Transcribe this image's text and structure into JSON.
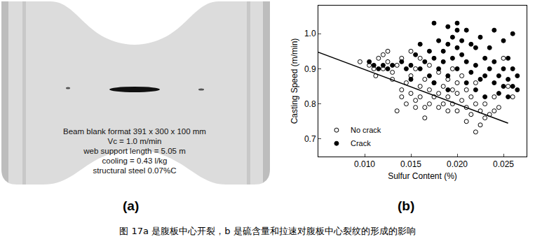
{
  "panel_a": {
    "label": "(a)",
    "lines": [
      "Beam blank format 391 x 300 x 100 mm",
      "Vc = 1.0 m/min",
      "web support length = 5.05 m",
      "cooling = 0.43 l/kg",
      "structural steel 0.07%C"
    ]
  },
  "panel_b_label": "(b)",
  "caption": "图 17a 是腹板中心开裂，b 是硫含量和拉速对腹板中心裂纹的形成的影响",
  "chart_data": {
    "type": "scatter",
    "x_label": "Sulfur Content (%)",
    "y_label": "Casting Speed (m/min)",
    "xlim": [
      0.005,
      0.0275
    ],
    "xticks": [
      {
        "value": 0.01,
        "label": "0.010"
      },
      0.015,
      {
        "value": 0.02,
        "label": "0.020"
      },
      0.025
    ],
    "ylim": [
      0.65,
      1.08
    ],
    "yticks": [
      0.7,
      0.8,
      0.9,
      {
        "value": 1,
        "label": "1.0"
      }
    ],
    "grid": false,
    "legend": "lower left",
    "series": [
      {
        "name": "No crack",
        "marker": "open circle",
        "color": "#000000",
        "x": [
          0.0095,
          0.0105,
          0.011,
          0.0115,
          0.012,
          0.012,
          0.0125,
          0.013,
          0.013,
          0.0135,
          0.0135,
          0.014,
          0.014,
          0.014,
          0.0145,
          0.0145,
          0.015,
          0.015,
          0.015,
          0.0155,
          0.0155,
          0.0155,
          0.016,
          0.016,
          0.016,
          0.0165,
          0.0165,
          0.017,
          0.017,
          0.017,
          0.0175,
          0.0175,
          0.018,
          0.018,
          0.018,
          0.0185,
          0.0185,
          0.019,
          0.019,
          0.019,
          0.0195,
          0.0195,
          0.0195,
          0.02,
          0.02,
          0.02,
          0.0205,
          0.0205,
          0.021,
          0.021,
          0.021,
          0.0215,
          0.0215,
          0.022,
          0.022,
          0.022,
          0.0225,
          0.0225,
          0.023,
          0.023,
          0.0235,
          0.024,
          0.024,
          0.0245,
          0.025,
          0.0255,
          0.026,
          0.0112,
          0.0125,
          0.0165
        ],
        "values": [
          0.92,
          0.91,
          0.9,
          0.93,
          0.94,
          0.9,
          0.92,
          0.89,
          0.87,
          0.91,
          0.78,
          0.84,
          0.82,
          0.93,
          0.8,
          0.86,
          0.83,
          0.88,
          0.95,
          0.79,
          0.81,
          0.9,
          0.85,
          0.82,
          0.93,
          0.79,
          0.87,
          0.8,
          0.84,
          0.91,
          0.82,
          0.86,
          0.79,
          0.83,
          0.89,
          0.8,
          0.85,
          0.78,
          0.82,
          0.87,
          0.8,
          0.84,
          0.9,
          0.78,
          0.83,
          0.86,
          0.81,
          0.88,
          0.75,
          0.79,
          0.84,
          0.77,
          0.82,
          0.72,
          0.8,
          0.86,
          0.74,
          0.78,
          0.76,
          0.8,
          0.77,
          0.78,
          0.82,
          0.79,
          0.93,
          0.85,
          0.82,
          0.88,
          0.95,
          0.76
        ]
      },
      {
        "name": "Crack",
        "marker": "filled circle",
        "color": "#000000",
        "x": [
          0.0105,
          0.011,
          0.0115,
          0.012,
          0.0125,
          0.013,
          0.014,
          0.0145,
          0.015,
          0.015,
          0.0155,
          0.016,
          0.016,
          0.0165,
          0.017,
          0.017,
          0.0175,
          0.0175,
          0.018,
          0.018,
          0.0185,
          0.0185,
          0.019,
          0.019,
          0.019,
          0.0195,
          0.0195,
          0.02,
          0.02,
          0.02,
          0.02,
          0.0205,
          0.0205,
          0.021,
          0.021,
          0.021,
          0.0215,
          0.0215,
          0.022,
          0.022,
          0.022,
          0.0225,
          0.0225,
          0.023,
          0.023,
          0.023,
          0.0235,
          0.0235,
          0.024,
          0.024,
          0.024,
          0.0245,
          0.0245,
          0.025,
          0.025,
          0.025,
          0.0255,
          0.0255,
          0.0255,
          0.026,
          0.026,
          0.026,
          0.0265,
          0.0265,
          0.0175,
          0.019
        ],
        "values": [
          0.92,
          0.91,
          0.9,
          0.91,
          0.9,
          0.91,
          0.92,
          0.9,
          0.91,
          0.87,
          0.94,
          0.9,
          0.97,
          0.92,
          0.95,
          0.88,
          1.03,
          0.93,
          0.98,
          0.9,
          0.95,
          0.92,
          1.02,
          0.97,
          0.88,
          0.99,
          0.93,
          1.03,
          1.01,
          0.96,
          0.9,
          0.98,
          0.94,
          1.01,
          0.92,
          0.86,
          0.97,
          0.89,
          0.96,
          0.91,
          0.84,
          0.99,
          0.87,
          0.93,
          0.88,
          0.82,
          0.96,
          0.9,
          1.01,
          0.92,
          0.86,
          0.88,
          0.83,
          0.98,
          0.9,
          0.85,
          0.93,
          0.87,
          0.82,
          1.0,
          0.9,
          0.85,
          0.88,
          0.84,
          0.86,
          0.84
        ]
      },
      {
        "type": "line",
        "line_style": "solid",
        "color": "#000000",
        "x": [
          0.0047,
          0.0255
        ],
        "values": [
          0.95,
          0.745
        ]
      }
    ]
  }
}
